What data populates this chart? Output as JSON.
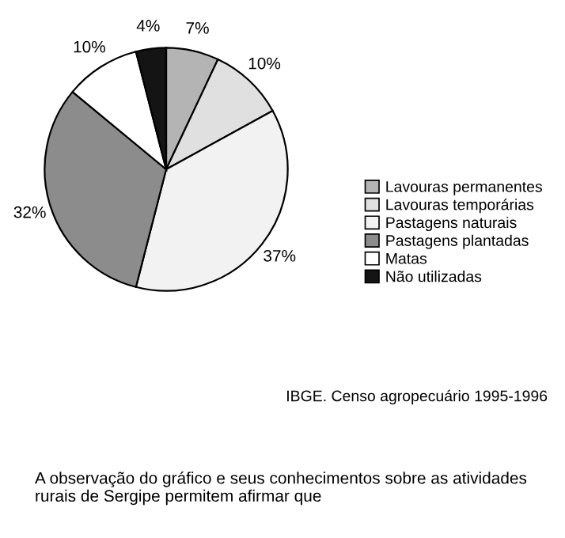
{
  "chart_data": {
    "type": "pie",
    "categories": [
      "Lavouras permanentes",
      "Lavouras temporárias",
      "Pastagens naturais",
      "Pastagens plantadas",
      "Matas",
      "Não utilizadas"
    ],
    "values": [
      7,
      10,
      37,
      32,
      10,
      4
    ],
    "colors": [
      "#b4b4b4",
      "#e0e0e0",
      "#f2f2f2",
      "#8c8c8c",
      "#ffffff",
      "#141414"
    ],
    "value_labels": [
      "7%",
      "10%",
      "37%",
      "32%",
      "10%",
      "4%"
    ],
    "legend": "right",
    "annotations": [
      "IBGE. Censo agropecuário 1995-1996",
      "A observação do gráfico e seus conhecimentos sobre as atividades rurais de Sergipe permitem afirmar que"
    ]
  }
}
